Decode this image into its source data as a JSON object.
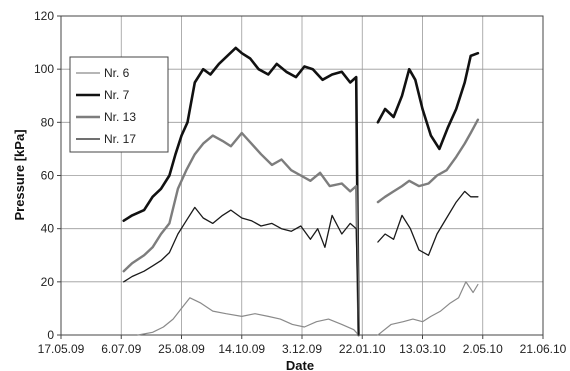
{
  "chart_data": {
    "type": "line",
    "xlabel": "Date",
    "ylabel": "Pressure [kPa]",
    "x_tick_labels": [
      "17.05.09",
      "6.07.09",
      "25.08.09",
      "14.10.09",
      "3.12.09",
      "22.01.10",
      "13.03.10",
      "2.05.10",
      "21.06.10"
    ],
    "xlim": [
      "2009-05-17",
      "2010-06-21"
    ],
    "ylim": [
      0,
      120
    ],
    "y_ticks": [
      0,
      20,
      40,
      60,
      80,
      100,
      120
    ],
    "grid": true,
    "legend_position": "top-left",
    "series": [
      {
        "name": "Nr. 6",
        "color": "#8a8a8a",
        "width": 1.2,
        "x": [
          "2009-07-20",
          "2009-08-01",
          "2009-08-10",
          "2009-08-18",
          "2009-08-25",
          "2009-09-01",
          "2009-09-10",
          "2009-09-20",
          "2009-10-01",
          "2009-10-14",
          "2009-10-25",
          "2009-11-05",
          "2009-11-15",
          "2009-11-25",
          "2009-12-05",
          "2009-12-15",
          "2009-12-25",
          "2010-01-05",
          "2010-01-15",
          "2010-01-19",
          "2010-02-01",
          "2010-02-04",
          "2010-02-15",
          "2010-02-25",
          "2010-03-05",
          "2010-03-13",
          "2010-03-20",
          "2010-03-28",
          "2010-04-05",
          "2010-04-12",
          "2010-04-18",
          "2010-04-24",
          "2010-04-28"
        ],
        "y": [
          0,
          1,
          3,
          6,
          10,
          14,
          12,
          9,
          8,
          7,
          8,
          7,
          6,
          4,
          3,
          5,
          6,
          4,
          2,
          0,
          null,
          0,
          4,
          5,
          6,
          5,
          7,
          9,
          12,
          14,
          20,
          16,
          19
        ]
      },
      {
        "name": "Nr. 7",
        "color": "#111111",
        "width": 2.6,
        "x": [
          "2009-07-08",
          "2009-07-15",
          "2009-07-25",
          "2009-08-01",
          "2009-08-08",
          "2009-08-15",
          "2009-08-20",
          "2009-08-25",
          "2009-08-30",
          "2009-09-05",
          "2009-09-12",
          "2009-09-18",
          "2009-09-25",
          "2009-10-02",
          "2009-10-09",
          "2009-10-14",
          "2009-10-21",
          "2009-10-28",
          "2009-11-05",
          "2009-11-12",
          "2009-11-20",
          "2009-11-28",
          "2009-12-05",
          "2009-12-12",
          "2009-12-20",
          "2009-12-28",
          "2010-01-05",
          "2010-01-12",
          "2010-01-17",
          "2010-01-19",
          "2010-02-01",
          "2010-02-04",
          "2010-02-10",
          "2010-02-17",
          "2010-02-24",
          "2010-03-02",
          "2010-03-07",
          "2010-03-13",
          "2010-03-20",
          "2010-03-27",
          "2010-04-03",
          "2010-04-10",
          "2010-04-17",
          "2010-04-22",
          "2010-04-28"
        ],
        "y": [
          43,
          45,
          47,
          52,
          55,
          60,
          68,
          75,
          80,
          95,
          100,
          98,
          102,
          105,
          108,
          106,
          104,
          100,
          98,
          102,
          99,
          97,
          101,
          100,
          96,
          98,
          99,
          95,
          97,
          0,
          null,
          80,
          85,
          82,
          90,
          100,
          96,
          85,
          75,
          70,
          78,
          85,
          95,
          105,
          106
        ]
      },
      {
        "name": "Nr. 13",
        "color": "#7d7d7d",
        "width": 2.4,
        "x": [
          "2009-07-08",
          "2009-07-15",
          "2009-07-25",
          "2009-08-01",
          "2009-08-08",
          "2009-08-15",
          "2009-08-22",
          "2009-08-29",
          "2009-09-05",
          "2009-09-12",
          "2009-09-20",
          "2009-09-28",
          "2009-10-05",
          "2009-10-14",
          "2009-10-22",
          "2009-10-30",
          "2009-11-08",
          "2009-11-16",
          "2009-11-24",
          "2009-12-02",
          "2009-12-10",
          "2009-12-18",
          "2009-12-26",
          "2010-01-05",
          "2010-01-12",
          "2010-01-17",
          "2010-01-19",
          "2010-02-01",
          "2010-02-04",
          "2010-02-10",
          "2010-02-17",
          "2010-02-24",
          "2010-03-02",
          "2010-03-10",
          "2010-03-18",
          "2010-03-25",
          "2010-04-02",
          "2010-04-10",
          "2010-04-17",
          "2010-04-22",
          "2010-04-28"
        ],
        "y": [
          24,
          27,
          30,
          33,
          38,
          42,
          55,
          62,
          68,
          72,
          75,
          73,
          71,
          76,
          72,
          68,
          64,
          66,
          62,
          60,
          58,
          61,
          56,
          57,
          54,
          56,
          0,
          null,
          50,
          52,
          54,
          56,
          58,
          56,
          57,
          60,
          62,
          67,
          72,
          76,
          81
        ]
      },
      {
        "name": "Nr. 17",
        "color": "#1a1a1a",
        "width": 1.3,
        "x": [
          "2009-07-08",
          "2009-07-15",
          "2009-07-25",
          "2009-08-01",
          "2009-08-08",
          "2009-08-15",
          "2009-08-22",
          "2009-08-29",
          "2009-09-05",
          "2009-09-12",
          "2009-09-20",
          "2009-09-28",
          "2009-10-05",
          "2009-10-14",
          "2009-10-22",
          "2009-10-30",
          "2009-11-08",
          "2009-11-16",
          "2009-11-24",
          "2009-12-02",
          "2009-12-10",
          "2009-12-16",
          "2009-12-22",
          "2009-12-28",
          "2010-01-05",
          "2010-01-12",
          "2010-01-17",
          "2010-01-19",
          "2010-02-01",
          "2010-02-04",
          "2010-02-10",
          "2010-02-17",
          "2010-02-24",
          "2010-03-03",
          "2010-03-10",
          "2010-03-18",
          "2010-03-25",
          "2010-04-02",
          "2010-04-10",
          "2010-04-17",
          "2010-04-22",
          "2010-04-28"
        ],
        "y": [
          20,
          22,
          24,
          26,
          28,
          31,
          38,
          43,
          48,
          44,
          42,
          45,
          47,
          44,
          43,
          41,
          42,
          40,
          39,
          41,
          36,
          40,
          33,
          45,
          38,
          42,
          40,
          0,
          null,
          35,
          38,
          36,
          45,
          40,
          32,
          30,
          38,
          44,
          50,
          54,
          52,
          52
        ]
      }
    ]
  }
}
